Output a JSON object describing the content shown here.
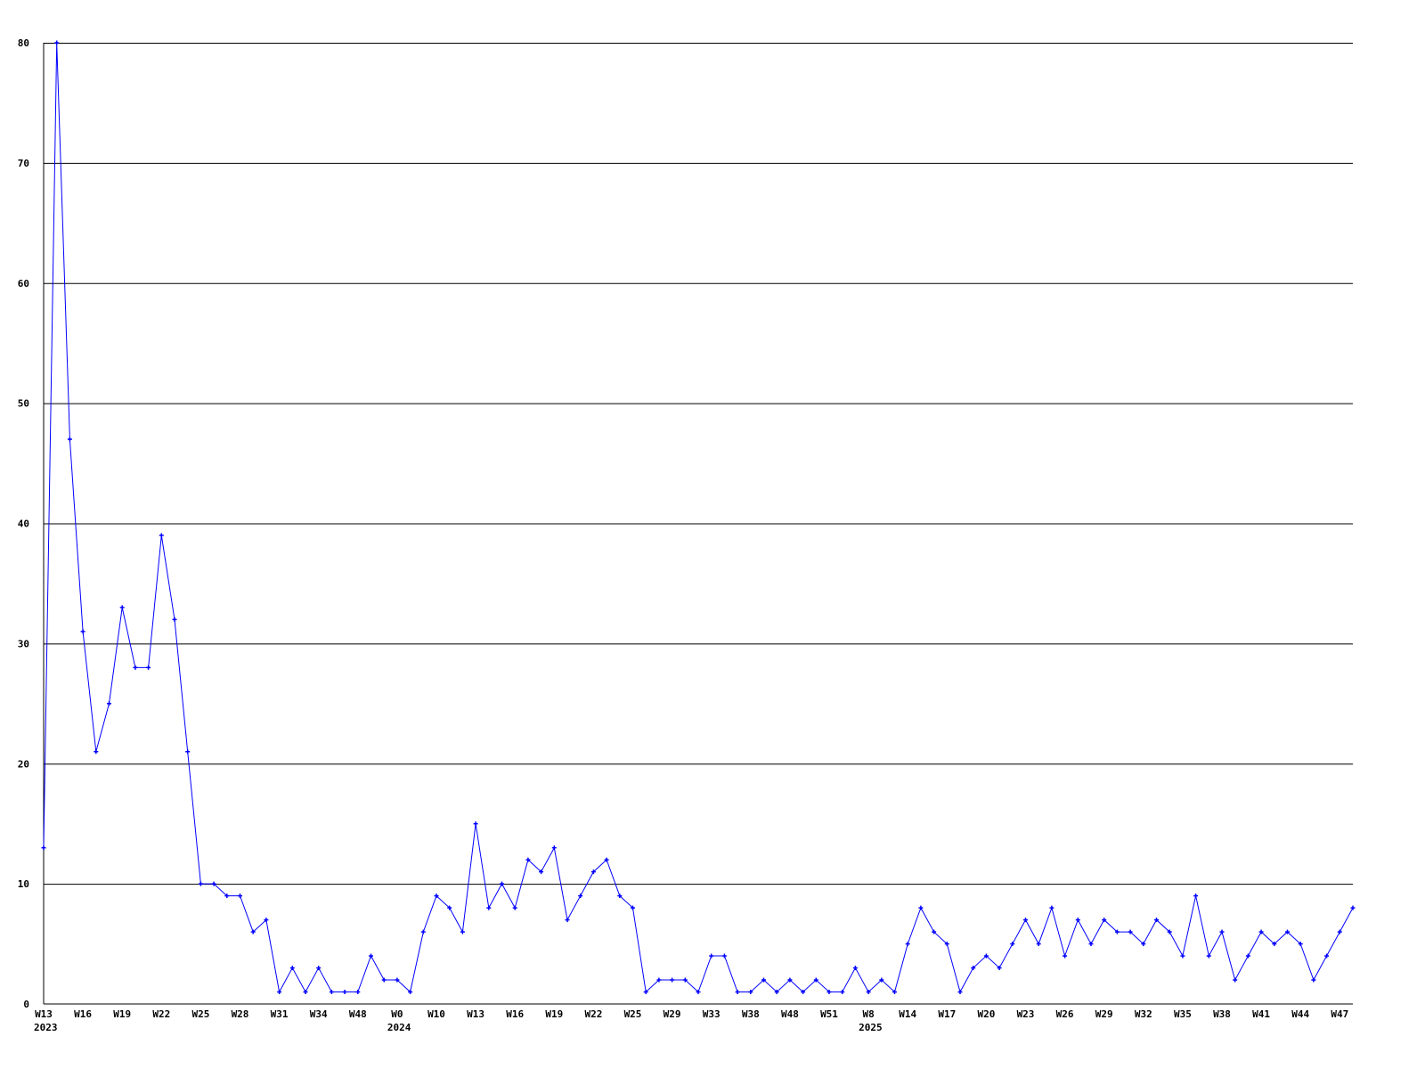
{
  "chart_data": {
    "type": "line",
    "title": "",
    "xlabel": "",
    "ylabel": "",
    "ylim": [
      0,
      80
    ],
    "yticks": [
      0,
      10,
      20,
      30,
      40,
      50,
      60,
      70,
      80
    ],
    "grid": true,
    "line_color": "#0000ff",
    "x_tick_labels": [
      {
        "index": 0,
        "label": "W13",
        "year": "2023"
      },
      {
        "index": 3,
        "label": "W16"
      },
      {
        "index": 6,
        "label": "W19"
      },
      {
        "index": 9,
        "label": "W22"
      },
      {
        "index": 12,
        "label": "W25"
      },
      {
        "index": 15,
        "label": "W28"
      },
      {
        "index": 18,
        "label": "W31"
      },
      {
        "index": 21,
        "label": "W34"
      },
      {
        "index": 24,
        "label": "W48"
      },
      {
        "index": 27,
        "label": "W0",
        "year": "2024"
      },
      {
        "index": 30,
        "label": "W10"
      },
      {
        "index": 33,
        "label": "W13"
      },
      {
        "index": 36,
        "label": "W16"
      },
      {
        "index": 39,
        "label": "W19"
      },
      {
        "index": 42,
        "label": "W22"
      },
      {
        "index": 45,
        "label": "W25"
      },
      {
        "index": 48,
        "label": "W29"
      },
      {
        "index": 51,
        "label": "W33"
      },
      {
        "index": 54,
        "label": "W38"
      },
      {
        "index": 57,
        "label": "W48"
      },
      {
        "index": 60,
        "label": "W51"
      },
      {
        "index": 63,
        "label": "W8",
        "year": "2025"
      },
      {
        "index": 66,
        "label": "W14"
      },
      {
        "index": 69,
        "label": "W17"
      },
      {
        "index": 72,
        "label": "W20"
      },
      {
        "index": 75,
        "label": "W23"
      },
      {
        "index": 78,
        "label": "W26"
      },
      {
        "index": 81,
        "label": "W29"
      },
      {
        "index": 84,
        "label": "W32"
      },
      {
        "index": 87,
        "label": "W35"
      },
      {
        "index": 90,
        "label": "W38"
      },
      {
        "index": 93,
        "label": "W41"
      },
      {
        "index": 96,
        "label": "W44"
      },
      {
        "index": 99,
        "label": "W47"
      }
    ],
    "values": [
      13,
      80,
      47,
      31,
      21,
      25,
      33,
      28,
      28,
      39,
      32,
      21,
      10,
      10,
      9,
      9,
      6,
      7,
      1,
      3,
      1,
      3,
      1,
      1,
      1,
      4,
      2,
      2,
      1,
      6,
      9,
      8,
      6,
      15,
      8,
      10,
      8,
      12,
      11,
      13,
      7,
      9,
      11,
      12,
      9,
      8,
      1,
      2,
      2,
      2,
      1,
      4,
      4,
      1,
      1,
      2,
      1,
      2,
      1,
      2,
      1,
      1,
      3,
      1,
      2,
      1,
      5,
      8,
      6,
      5,
      1,
      3,
      4,
      3,
      5,
      7,
      5,
      8,
      4,
      7,
      5,
      7,
      6,
      6,
      5,
      7,
      6,
      4,
      9,
      4,
      6,
      2,
      4,
      6,
      5,
      6,
      5,
      2,
      4,
      6,
      8
    ]
  }
}
